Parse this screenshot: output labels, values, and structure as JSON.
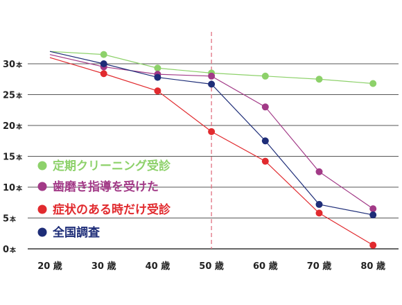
{
  "chart_data": {
    "type": "line",
    "x": [
      20,
      30,
      40,
      50,
      60,
      70,
      80
    ],
    "x_tick_labels": [
      "20 歳",
      "30 歳",
      "40 歳",
      "50 歳",
      "60 歳",
      "70 歳",
      "80 歳"
    ],
    "y_unit": "本",
    "y_ticks": [
      0,
      5,
      10,
      15,
      20,
      25,
      30
    ],
    "ylim": [
      0,
      33
    ],
    "xlim": [
      20,
      80
    ],
    "grid": "horizontal",
    "reference_line": {
      "x": 50,
      "style": "dashed",
      "color": "#e07080"
    },
    "legend_position": "left",
    "series": [
      {
        "name": "定期クリーニング受診",
        "color": "#8dd16a",
        "values": [
          32,
          31.5,
          29.3,
          28.5,
          28,
          27.5,
          26.8
        ]
      },
      {
        "name": "歯磨き指導を受けた",
        "color": "#a23a87",
        "values": [
          31.5,
          29.5,
          28.3,
          28,
          23,
          12.5,
          6.5
        ]
      },
      {
        "name": "症状のある時だけ受診",
        "color": "#e12a2e",
        "values": [
          31,
          28.4,
          25.6,
          19,
          14.2,
          5.8,
          0.6
        ]
      },
      {
        "name": "全国調査",
        "color": "#1e2d78",
        "values": [
          32,
          30,
          27.8,
          26.7,
          17.5,
          7.2,
          5.5
        ]
      }
    ]
  }
}
